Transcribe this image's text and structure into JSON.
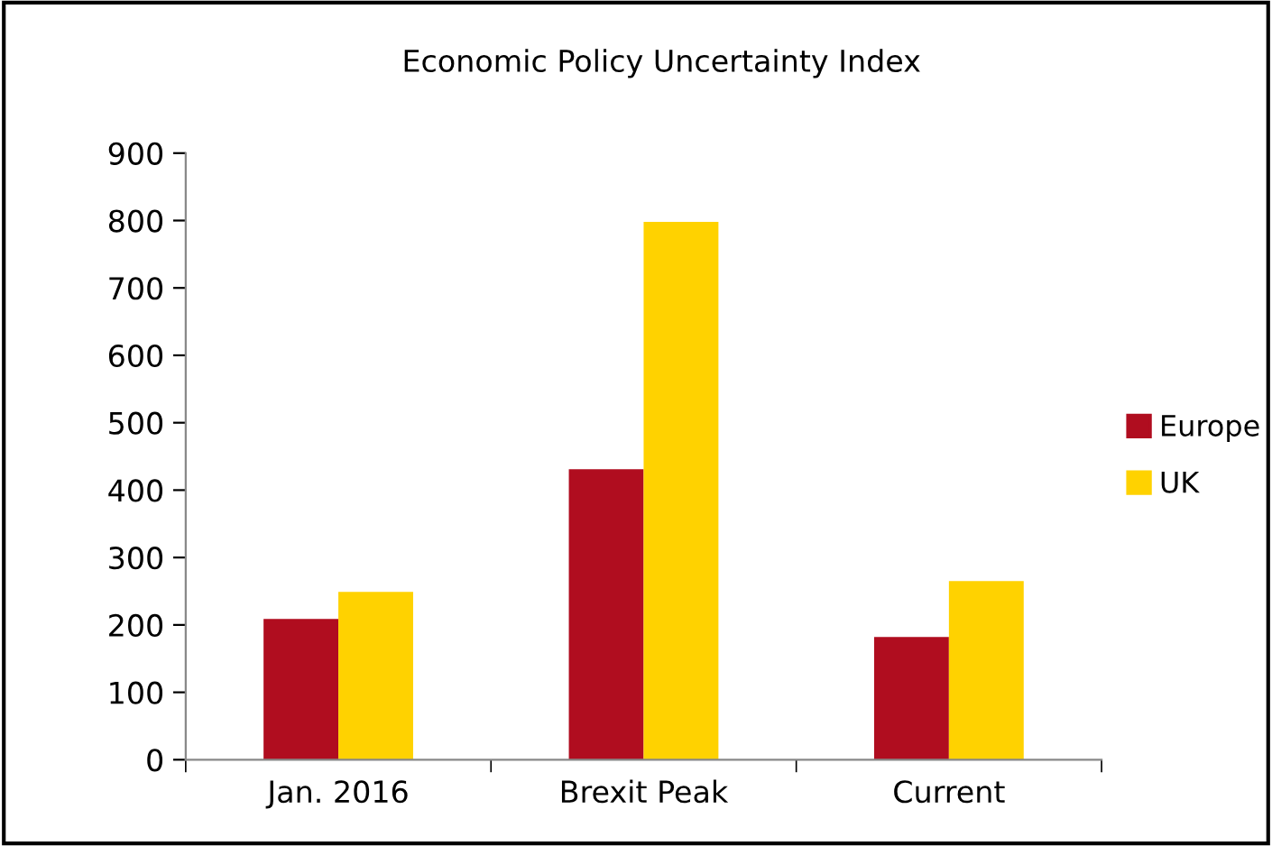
{
  "chart_data": {
    "type": "bar",
    "title": "Economic Policy Uncertainty Index",
    "categories": [
      "Jan. 2016",
      "Brexit Peak",
      "Current"
    ],
    "series": [
      {
        "name": "Europe",
        "color": "#b00d1f",
        "values": [
          209,
          431,
          182
        ]
      },
      {
        "name": "UK",
        "color": "#ffd200",
        "values": [
          249,
          798,
          265
        ]
      }
    ],
    "ylim": [
      0,
      900
    ],
    "yticks": [
      0,
      100,
      200,
      300,
      400,
      500,
      600,
      700,
      800,
      900
    ],
    "grid": false,
    "legend": "right"
  }
}
